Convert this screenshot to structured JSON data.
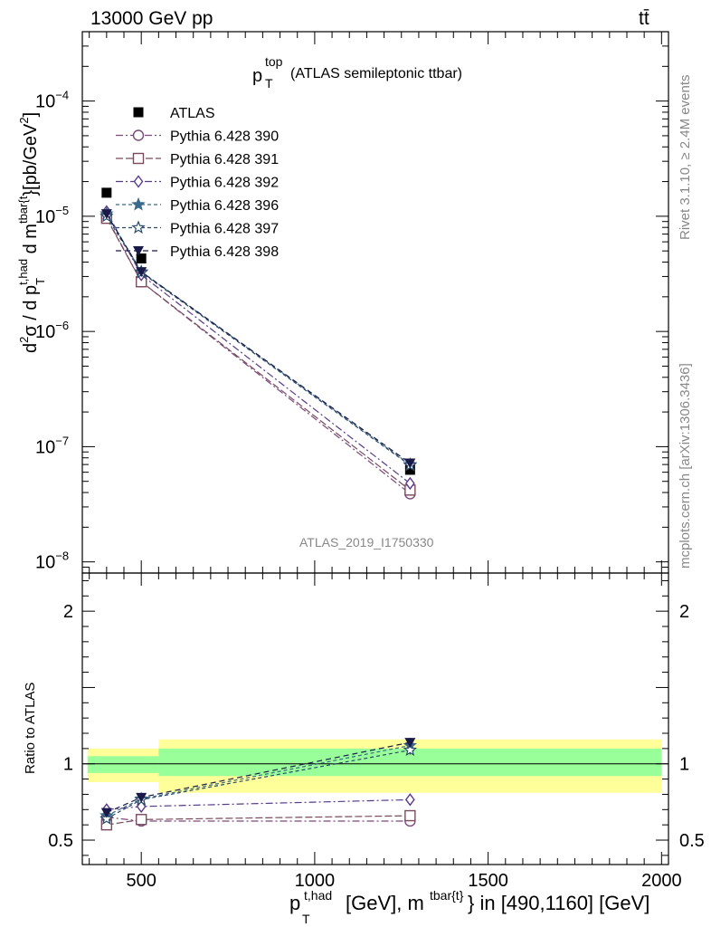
{
  "header": {
    "energy_label": "13000 GeV pp",
    "process_label": "tt̄"
  },
  "side_labels": {
    "rivet": "Rivet 3.1.10, ≥ 2.4M events",
    "source": "mcplots.cern.ch [arXiv:1306.3436]"
  },
  "chart_data": [
    {
      "type": "scatter",
      "title": "p_T^top (ATLAS semileptonic ttbar)",
      "title_main": "p",
      "title_sub": "T",
      "title_sup": "top",
      "title_rest": "(ATLAS semileptonic ttbar)",
      "analysis_label": "ATLAS_2019_I1750330",
      "ylabel": "d²σ / d p_T^{t,had} d m^{tbar{t}} [pb/GeV²]",
      "yscale": "log",
      "ylim": [
        8e-09,
        0.0004
      ],
      "xlim": [
        330,
        2020
      ],
      "y_ticks": [
        {
          "value": 1e-08,
          "mant": "10",
          "exp": "−8"
        },
        {
          "value": 1e-07,
          "mant": "10",
          "exp": "−7"
        },
        {
          "value": 1e-06,
          "mant": "10",
          "exp": "−6"
        },
        {
          "value": 1e-05,
          "mant": "10",
          "exp": "−5"
        },
        {
          "value": 0.0001,
          "mant": "10",
          "exp": "−4"
        }
      ],
      "legend_position": "top-left",
      "series": [
        {
          "name": "ATLAS",
          "color": "#000000",
          "marker": "filled-square",
          "dash": "none",
          "x": [
            400,
            500,
            1275
          ],
          "y": [
            1.6e-05,
            4.3e-06,
            6.3e-08
          ]
        },
        {
          "name": "Pythia 6.428 390",
          "color": "#7a4a7a",
          "marker": "open-circle",
          "dash": "8,3,2,3",
          "x": [
            400,
            500,
            1275
          ],
          "y": [
            9.8e-06,
            2.7e-06,
            3.9e-08
          ]
        },
        {
          "name": "Pythia 6.428 391",
          "color": "#7a4a5e",
          "marker": "open-square",
          "dash": "8,3",
          "x": [
            400,
            500,
            1275
          ],
          "y": [
            9.6e-06,
            2.7e-06,
            4.2e-08
          ]
        },
        {
          "name": "Pythia 6.428 392",
          "color": "#5a3a8a",
          "marker": "open-diamond",
          "dash": "8,3,2,3",
          "x": [
            400,
            500,
            1275
          ],
          "y": [
            1.1e-05,
            3.1e-06,
            4.8e-08
          ]
        },
        {
          "name": "Pythia 6.428 396",
          "color": "#3a6a8a",
          "marker": "filled-star",
          "dash": "4,3",
          "x": [
            400,
            500,
            1275
          ],
          "y": [
            1.05e-05,
            3.3e-06,
            7e-08
          ]
        },
        {
          "name": "Pythia 6.428 397",
          "color": "#2a4a6a",
          "marker": "open-star",
          "dash": "4,3",
          "x": [
            400,
            500,
            1275
          ],
          "y": [
            1e-05,
            3.25e-06,
            6.9e-08
          ]
        },
        {
          "name": "Pythia 6.428 398",
          "color": "#1a1a4a",
          "marker": "filled-triangle-down",
          "dash": "6,4",
          "x": [
            400,
            500,
            1275
          ],
          "y": [
            1.05e-05,
            3.3e-06,
            7.2e-08
          ]
        }
      ]
    },
    {
      "type": "line",
      "ylabel": "Ratio to ATLAS",
      "xlabel": "p_T^{t,had} [GeV], m^{tbar{t}} in [490,1160] [GeV]",
      "xlabel_main": "p",
      "xlabel_sub": "T",
      "xlabel_sup": "t,had",
      "xlabel_mid": "[GeV], m",
      "xlabel_sup2": "tbar{t}",
      "xlabel_end": "} in [490,1160] [GeV]",
      "ylim": [
        0.34,
        2.25
      ],
      "xlim": [
        330,
        2020
      ],
      "y_tick_labels": [
        {
          "value": 0.5,
          "label": "0.5"
        },
        {
          "value": 1,
          "label": "1"
        },
        {
          "value": 2,
          "label": "2"
        }
      ],
      "x_tick_labels": [
        {
          "value": 500,
          "label": "500"
        },
        {
          "value": 1000,
          "label": "1000"
        },
        {
          "value": 1500,
          "label": "1500"
        },
        {
          "value": 2000,
          "label": "2000"
        }
      ],
      "uncertainty_bands": [
        {
          "x_range": [
            345,
            450
          ],
          "yellow": [
            0.88,
            1.1
          ],
          "green": [
            0.94,
            1.05
          ]
        },
        {
          "x_range": [
            450,
            550
          ],
          "yellow": [
            0.88,
            1.1
          ],
          "green": [
            0.94,
            1.05
          ]
        },
        {
          "x_range": [
            550,
            2000
          ],
          "yellow": [
            0.81,
            1.16
          ],
          "green": [
            0.92,
            1.1
          ]
        }
      ],
      "series": [
        {
          "name": "Pythia 6.428 390",
          "x": [
            400,
            500,
            1275
          ],
          "y": [
            0.65,
            0.625,
            0.625
          ],
          "err": [
            0.02,
            0.015,
            0.03
          ]
        },
        {
          "name": "Pythia 6.428 391",
          "x": [
            400,
            500,
            1275
          ],
          "y": [
            0.6,
            0.635,
            0.66
          ],
          "err": [
            0.02,
            0.015,
            0.03
          ]
        },
        {
          "name": "Pythia 6.428 392",
          "x": [
            400,
            500,
            1275
          ],
          "y": [
            0.7,
            0.72,
            0.765
          ],
          "err": [
            0.02,
            0.015,
            0.03
          ]
        },
        {
          "name": "Pythia 6.428 396",
          "x": [
            400,
            500,
            1275
          ],
          "y": [
            0.66,
            0.77,
            1.12
          ],
          "err": [
            0.02,
            0.015,
            0.03
          ]
        },
        {
          "name": "Pythia 6.428 397",
          "x": [
            400,
            500,
            1275
          ],
          "y": [
            0.64,
            0.765,
            1.09
          ],
          "err": [
            0.02,
            0.015,
            0.03
          ]
        },
        {
          "name": "Pythia 6.428 398",
          "x": [
            400,
            500,
            1275
          ],
          "y": [
            0.68,
            0.78,
            1.14
          ],
          "err": [
            0.02,
            0.015,
            0.03
          ]
        }
      ]
    }
  ]
}
